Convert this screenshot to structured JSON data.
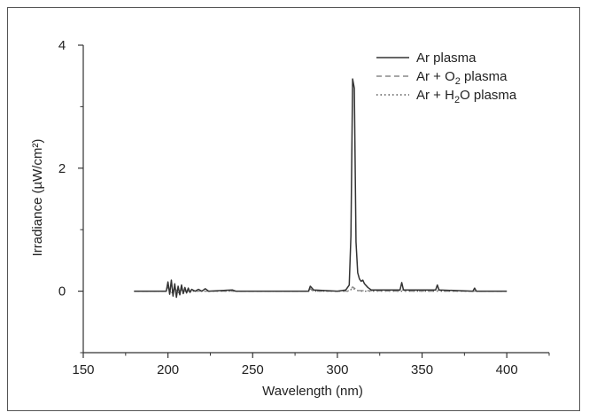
{
  "chart_data": {
    "type": "line",
    "xlabel": "Wavelength (nm)",
    "ylabel": "Irradiance (µW/cm²)",
    "xlim": [
      150,
      425
    ],
    "ylim": [
      -1,
      4
    ],
    "xticks": [
      "150",
      "200",
      "250",
      "300",
      "350",
      "400"
    ],
    "yticks": [
      "0",
      "2",
      "4"
    ],
    "grid": false,
    "legend_position": "top-right",
    "series": [
      {
        "name": "Ar plasma",
        "style": "solid",
        "color": "#333333",
        "points": [
          [
            180,
            0.0
          ],
          [
            199,
            0.0
          ],
          [
            200,
            0.15
          ],
          [
            201,
            -0.05
          ],
          [
            202,
            0.18
          ],
          [
            203,
            -0.08
          ],
          [
            204,
            0.12
          ],
          [
            205,
            -0.1
          ],
          [
            206,
            0.08
          ],
          [
            207,
            -0.06
          ],
          [
            208,
            0.1
          ],
          [
            209,
            -0.04
          ],
          [
            210,
            0.06
          ],
          [
            211,
            -0.03
          ],
          [
            212,
            0.05
          ],
          [
            213,
            -0.02
          ],
          [
            214,
            0.03
          ],
          [
            216,
            0.0
          ],
          [
            218,
            0.03
          ],
          [
            220,
            0.0
          ],
          [
            222,
            0.04
          ],
          [
            224,
            0.0
          ],
          [
            238,
            0.02
          ],
          [
            240,
            0.0
          ],
          [
            283,
            0.0
          ],
          [
            284,
            0.08
          ],
          [
            286,
            0.02
          ],
          [
            300,
            0.0
          ],
          [
            305,
            0.02
          ],
          [
            307,
            0.1
          ],
          [
            308,
            0.9
          ],
          [
            309,
            3.45
          ],
          [
            310,
            3.3
          ],
          [
            311,
            0.8
          ],
          [
            312,
            0.3
          ],
          [
            313,
            0.2
          ],
          [
            314,
            0.16
          ],
          [
            315,
            0.18
          ],
          [
            316,
            0.12
          ],
          [
            318,
            0.06
          ],
          [
            320,
            0.02
          ],
          [
            337,
            0.02
          ],
          [
            338,
            0.14
          ],
          [
            339,
            0.02
          ],
          [
            358,
            0.02
          ],
          [
            359,
            0.1
          ],
          [
            360,
            0.02
          ],
          [
            380,
            0.0
          ],
          [
            381,
            0.05
          ],
          [
            382,
            0.0
          ],
          [
            400,
            0.0
          ]
        ]
      },
      {
        "name": "Ar + O2 plasma",
        "style": "dashed",
        "color": "#888888",
        "points": [
          [
            180,
            0.0
          ],
          [
            199,
            0.0
          ],
          [
            200,
            0.05
          ],
          [
            202,
            -0.03
          ],
          [
            204,
            0.04
          ],
          [
            206,
            -0.02
          ],
          [
            208,
            0.03
          ],
          [
            210,
            0.0
          ],
          [
            283,
            0.0
          ],
          [
            284,
            0.04
          ],
          [
            286,
            0.0
          ],
          [
            306,
            0.0
          ],
          [
            308,
            0.03
          ],
          [
            309,
            0.07
          ],
          [
            310,
            0.05
          ],
          [
            312,
            0.01
          ],
          [
            338,
            0.0
          ],
          [
            339,
            0.03
          ],
          [
            340,
            0.0
          ],
          [
            359,
            0.0
          ],
          [
            360,
            0.03
          ],
          [
            361,
            0.0
          ],
          [
            400,
            0.0
          ]
        ]
      },
      {
        "name": "Ar + H2O plasma",
        "style": "dotted",
        "color": "#555555",
        "points": [
          [
            180,
            0.0
          ],
          [
            199,
            0.0
          ],
          [
            200,
            0.06
          ],
          [
            202,
            -0.04
          ],
          [
            204,
            0.05
          ],
          [
            206,
            -0.03
          ],
          [
            208,
            0.02
          ],
          [
            210,
            0.0
          ],
          [
            283,
            0.0
          ],
          [
            284,
            0.03
          ],
          [
            286,
            0.0
          ],
          [
            307,
            0.0
          ],
          [
            309,
            0.05
          ],
          [
            311,
            0.02
          ],
          [
            313,
            0.0
          ],
          [
            400,
            0.0
          ]
        ]
      }
    ]
  },
  "legend": {
    "items": [
      {
        "prefix": "Ar plasma",
        "sub": "",
        "suffix": ""
      },
      {
        "prefix": "Ar + O",
        "sub": "2",
        "suffix": " plasma"
      },
      {
        "prefix": "Ar + H",
        "sub": "2",
        "suffix": "O plasma"
      }
    ]
  }
}
